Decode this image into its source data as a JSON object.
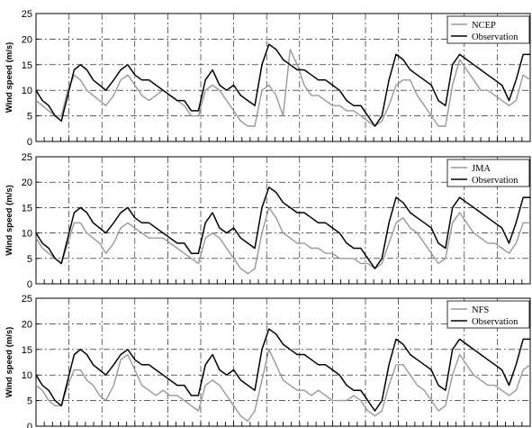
{
  "chart_data": [
    {
      "type": "line",
      "ylabel": "Wind speed (m/s)",
      "ylim": [
        0,
        25
      ],
      "yticks": [
        0,
        5,
        10,
        15,
        20,
        25
      ],
      "xlim": [
        0,
        70
      ],
      "grid": true,
      "legend": "top-right",
      "series": [
        {
          "name": "NCEP",
          "color": "#999999",
          "x": [
            0,
            0.9,
            1.8,
            2.7,
            3.6,
            4.5,
            5.4,
            6.3,
            7.2,
            8.1,
            9,
            9.9,
            11,
            12,
            13,
            14,
            15,
            16,
            17,
            18,
            19,
            20,
            21,
            22,
            23,
            24,
            25,
            26,
            27,
            28,
            29,
            30,
            31,
            32,
            33,
            34,
            35,
            36,
            37,
            38,
            39,
            40,
            41,
            42,
            43,
            44,
            45,
            46,
            47,
            48,
            49,
            50,
            51,
            52,
            53,
            54,
            55,
            56,
            57,
            58,
            59,
            60,
            61,
            62,
            63,
            64,
            65,
            66,
            67,
            68,
            69,
            70
          ],
          "values": [
            8,
            7,
            6,
            5,
            5,
            10,
            13,
            12,
            10,
            9,
            8,
            7,
            9,
            12,
            13,
            11,
            9,
            8,
            9,
            10,
            9,
            8,
            7,
            5,
            5,
            10,
            11,
            10,
            8,
            6,
            4,
            3,
            3,
            10,
            11,
            9,
            5,
            18,
            15,
            11,
            9,
            9,
            8,
            7,
            7,
            6,
            6,
            5,
            4,
            3,
            4,
            7,
            11,
            12,
            12,
            9,
            7,
            5,
            3,
            3,
            11,
            16,
            14,
            12,
            10,
            10,
            9,
            8,
            7,
            8,
            13,
            12
          ]
        },
        {
          "name": "Observation",
          "color": "#000000",
          "x": [
            0,
            0.9,
            1.8,
            2.7,
            3.6,
            4.5,
            5.4,
            6.3,
            7.2,
            8.1,
            9,
            9.9,
            11,
            12,
            13,
            14,
            15,
            16,
            17,
            18,
            19,
            20,
            21,
            22,
            23,
            24,
            25,
            26,
            27,
            28,
            29,
            30,
            31,
            32,
            33,
            34,
            35,
            36,
            37,
            38,
            39,
            40,
            41,
            42,
            43,
            44,
            45,
            46,
            47,
            48,
            49,
            50,
            51,
            52,
            53,
            54,
            55,
            56,
            57,
            58,
            59,
            60,
            61,
            62,
            63,
            64,
            65,
            66,
            67,
            68,
            69,
            70
          ],
          "values": [
            10,
            8,
            7,
            5,
            4,
            9,
            14,
            15,
            14,
            12,
            11,
            10,
            12,
            14,
            15,
            13,
            12,
            12,
            11,
            10,
            9,
            8,
            8,
            6,
            6,
            12,
            14,
            11,
            10,
            11,
            9,
            8,
            7,
            15,
            19,
            18,
            16,
            15,
            14,
            14,
            13,
            12,
            12,
            11,
            10,
            8,
            7,
            7,
            5,
            3,
            5,
            12,
            17,
            16,
            14,
            13,
            12,
            11,
            8,
            7,
            15,
            17,
            16,
            15,
            14,
            13,
            12,
            11,
            8,
            12,
            17,
            17
          ]
        }
      ]
    },
    {
      "type": "line",
      "ylabel": "Wind speed (m/s)",
      "ylim": [
        0,
        25
      ],
      "yticks": [
        0,
        5,
        10,
        15,
        20,
        25
      ],
      "xlim": [
        0,
        70
      ],
      "grid": true,
      "legend": "top-right",
      "series": [
        {
          "name": "JMA",
          "color": "#999999",
          "x": [
            0,
            0.9,
            1.8,
            2.7,
            3.6,
            4.5,
            5.4,
            6.3,
            7.2,
            8.1,
            9,
            9.9,
            11,
            12,
            13,
            14,
            15,
            16,
            17,
            18,
            19,
            20,
            21,
            22,
            23,
            24,
            25,
            26,
            27,
            28,
            29,
            30,
            31,
            32,
            33,
            34,
            35,
            36,
            37,
            38,
            39,
            40,
            41,
            42,
            43,
            44,
            45,
            46,
            47,
            48,
            49,
            50,
            51,
            52,
            53,
            54,
            55,
            56,
            57,
            58,
            59,
            60,
            61,
            62,
            63,
            64,
            65,
            66,
            67,
            68,
            69,
            70
          ],
          "values": [
            9,
            7,
            6,
            5,
            4,
            8,
            12,
            12,
            10,
            9,
            8,
            6,
            8,
            11,
            12,
            11,
            10,
            9,
            9,
            9,
            8,
            7,
            6,
            5,
            4,
            9,
            10,
            9,
            7,
            5,
            3,
            2,
            3,
            10,
            15,
            13,
            10,
            9,
            8,
            8,
            7,
            7,
            6,
            6,
            5,
            5,
            5,
            4,
            4,
            3,
            4,
            8,
            12,
            13,
            11,
            10,
            8,
            6,
            4,
            5,
            12,
            14,
            12,
            10,
            9,
            8,
            8,
            7,
            6,
            8,
            12,
            12
          ]
        },
        {
          "name": "Observation",
          "color": "#000000",
          "x": [
            0,
            0.9,
            1.8,
            2.7,
            3.6,
            4.5,
            5.4,
            6.3,
            7.2,
            8.1,
            9,
            9.9,
            11,
            12,
            13,
            14,
            15,
            16,
            17,
            18,
            19,
            20,
            21,
            22,
            23,
            24,
            25,
            26,
            27,
            28,
            29,
            30,
            31,
            32,
            33,
            34,
            35,
            36,
            37,
            38,
            39,
            40,
            41,
            42,
            43,
            44,
            45,
            46,
            47,
            48,
            49,
            50,
            51,
            52,
            53,
            54,
            55,
            56,
            57,
            58,
            59,
            60,
            61,
            62,
            63,
            64,
            65,
            66,
            67,
            68,
            69,
            70
          ],
          "values": [
            10,
            8,
            7,
            5,
            4,
            9,
            14,
            15,
            14,
            12,
            11,
            10,
            12,
            14,
            15,
            13,
            12,
            12,
            11,
            10,
            9,
            8,
            8,
            6,
            6,
            12,
            14,
            11,
            10,
            11,
            9,
            8,
            7,
            15,
            19,
            18,
            16,
            15,
            14,
            14,
            13,
            12,
            12,
            11,
            10,
            8,
            7,
            7,
            5,
            3,
            5,
            12,
            17,
            16,
            14,
            13,
            12,
            11,
            8,
            7,
            15,
            17,
            16,
            15,
            14,
            13,
            12,
            11,
            8,
            12,
            17,
            17
          ]
        }
      ]
    },
    {
      "type": "line",
      "ylabel": "Wind speed (m/s)",
      "ylim": [
        0,
        25
      ],
      "yticks": [
        0,
        5,
        10,
        15,
        20,
        25
      ],
      "xlim": [
        0,
        70
      ],
      "grid": true,
      "legend": "top-right",
      "series": [
        {
          "name": "NFS",
          "color": "#999999",
          "x": [
            0,
            0.9,
            1.8,
            2.7,
            3.6,
            4.5,
            5.4,
            6.3,
            7.2,
            8.1,
            9,
            9.9,
            11,
            12,
            13,
            14,
            15,
            16,
            17,
            18,
            19,
            20,
            21,
            22,
            23,
            24,
            25,
            26,
            27,
            28,
            29,
            30,
            31,
            32,
            33,
            34,
            35,
            36,
            37,
            38,
            39,
            40,
            41,
            42,
            43,
            44,
            45,
            46,
            47,
            48,
            49,
            50,
            51,
            52,
            53,
            54,
            55,
            56,
            57,
            58,
            59,
            60,
            61,
            62,
            63,
            64,
            65,
            66,
            67,
            68,
            69,
            70
          ],
          "values": [
            8,
            7,
            5,
            4,
            4,
            8,
            11,
            11,
            9,
            8,
            6,
            5,
            8,
            13,
            14,
            11,
            8,
            7,
            6,
            7,
            6,
            6,
            5,
            4,
            3,
            8,
            9,
            8,
            6,
            4,
            2,
            1,
            3,
            9,
            15,
            12,
            9,
            8,
            7,
            7,
            6,
            7,
            6,
            5,
            5,
            5,
            6,
            5,
            3,
            2,
            3,
            8,
            12,
            12,
            10,
            8,
            7,
            5,
            3,
            4,
            10,
            14,
            12,
            10,
            9,
            8,
            8,
            7,
            6,
            7,
            11,
            12
          ]
        },
        {
          "name": "Observation",
          "color": "#000000",
          "x": [
            0,
            0.9,
            1.8,
            2.7,
            3.6,
            4.5,
            5.4,
            6.3,
            7.2,
            8.1,
            9,
            9.9,
            11,
            12,
            13,
            14,
            15,
            16,
            17,
            18,
            19,
            20,
            21,
            22,
            23,
            24,
            25,
            26,
            27,
            28,
            29,
            30,
            31,
            32,
            33,
            34,
            35,
            36,
            37,
            38,
            39,
            40,
            41,
            42,
            43,
            44,
            45,
            46,
            47,
            48,
            49,
            50,
            51,
            52,
            53,
            54,
            55,
            56,
            57,
            58,
            59,
            60,
            61,
            62,
            63,
            64,
            65,
            66,
            67,
            68,
            69,
            70
          ],
          "values": [
            10,
            8,
            7,
            5,
            4,
            9,
            14,
            15,
            14,
            12,
            11,
            10,
            12,
            14,
            15,
            13,
            12,
            12,
            11,
            10,
            9,
            8,
            8,
            6,
            6,
            12,
            14,
            11,
            10,
            11,
            9,
            8,
            7,
            15,
            19,
            18,
            16,
            15,
            14,
            14,
            13,
            12,
            12,
            11,
            10,
            8,
            7,
            7,
            5,
            3,
            5,
            12,
            17,
            16,
            14,
            13,
            12,
            11,
            8,
            7,
            15,
            17,
            16,
            15,
            14,
            13,
            12,
            11,
            8,
            12,
            17,
            17
          ]
        }
      ]
    }
  ]
}
